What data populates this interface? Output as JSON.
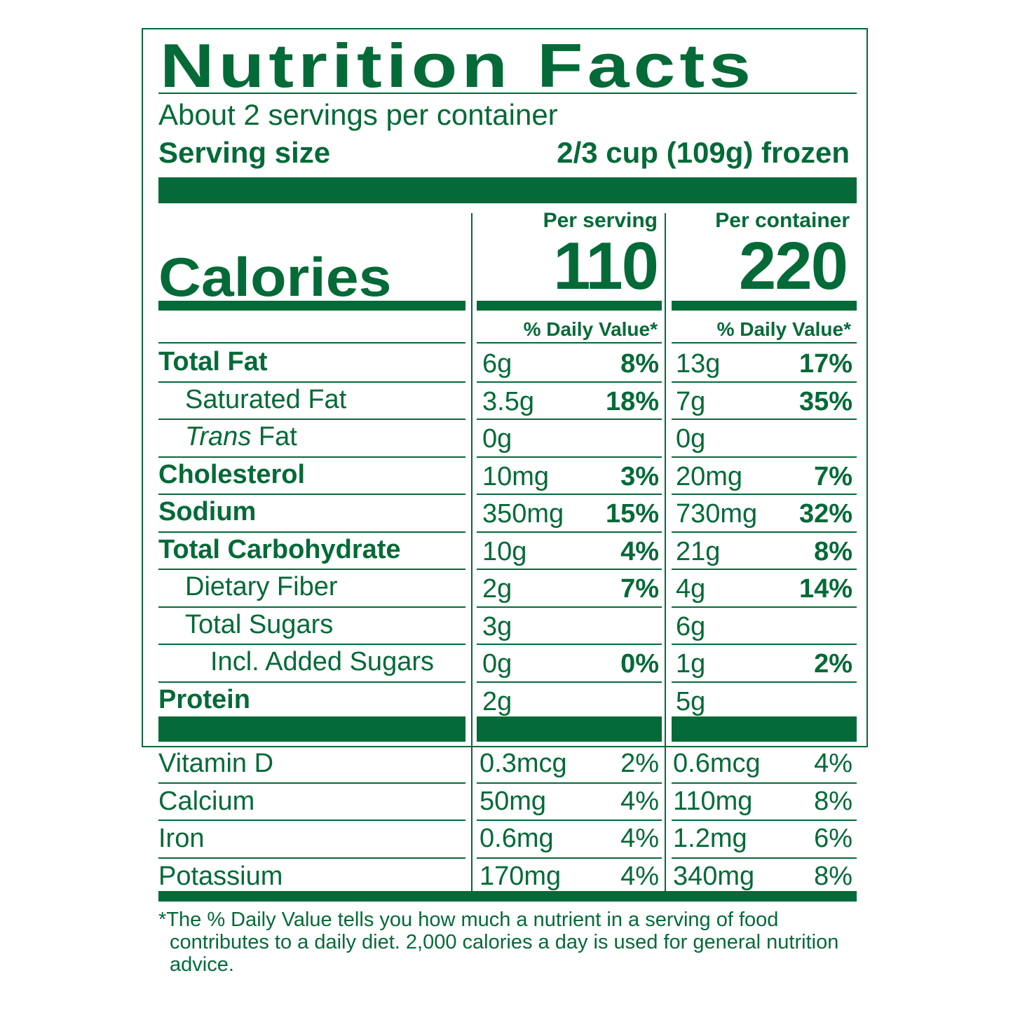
{
  "label": {
    "title": "Nutrition Facts",
    "servings_per_container": "About 2 servings per container",
    "serving_size_label": "Serving size",
    "serving_size_value": "2/3 cup (109g) frozen",
    "calories_label": "Calories",
    "per_serving_header": "Per serving",
    "per_container_header": "Per container",
    "calories_per_serving": "110",
    "calories_per_container": "220",
    "dv_header": "% Daily Value*",
    "nutrients": [
      {
        "name": "Total Fat",
        "serving_amount": "6g",
        "serving_dv": "8%",
        "container_amount": "13g",
        "container_dv": "17%"
      },
      {
        "name": "Saturated Fat",
        "serving_amount": "3.5g",
        "serving_dv": "18%",
        "container_amount": "7g",
        "container_dv": "35%"
      },
      {
        "name_italic": "Trans",
        "name_rest": " Fat",
        "serving_amount": "0g",
        "serving_dv": "",
        "container_amount": "0g",
        "container_dv": ""
      },
      {
        "name": "Cholesterol",
        "serving_amount": "10mg",
        "serving_dv": "3%",
        "container_amount": "20mg",
        "container_dv": "7%"
      },
      {
        "name": "Sodium",
        "serving_amount": "350mg",
        "serving_dv": "15%",
        "container_amount": "730mg",
        "container_dv": "32%"
      },
      {
        "name": "Total Carbohydrate",
        "serving_amount": "10g",
        "serving_dv": "4%",
        "container_amount": "21g",
        "container_dv": "8%"
      },
      {
        "name": "Dietary Fiber",
        "serving_amount": "2g",
        "serving_dv": "7%",
        "container_amount": "4g",
        "container_dv": "14%"
      },
      {
        "name": "Total Sugars",
        "serving_amount": "3g",
        "serving_dv": "",
        "container_amount": "6g",
        "container_dv": ""
      },
      {
        "name": "Incl. Added Sugars",
        "serving_amount": "0g",
        "serving_dv": "0%",
        "container_amount": "1g",
        "container_dv": "2%"
      },
      {
        "name": "Protein",
        "serving_amount": "2g",
        "serving_dv": "",
        "container_amount": "5g",
        "container_dv": ""
      }
    ],
    "vitamins": [
      {
        "name": "Vitamin D",
        "serving_amount": "0.3mcg",
        "serving_dv": "2%",
        "container_amount": "0.6mcg",
        "container_dv": "4%"
      },
      {
        "name": "Calcium",
        "serving_amount": "50mg",
        "serving_dv": "4%",
        "container_amount": "110mg",
        "container_dv": "8%"
      },
      {
        "name": "Iron",
        "serving_amount": "0.6mg",
        "serving_dv": "4%",
        "container_amount": "1.2mg",
        "container_dv": "6%"
      },
      {
        "name": "Potassium",
        "serving_amount": "170mg",
        "serving_dv": "4%",
        "container_amount": "340mg",
        "container_dv": "8%"
      }
    ],
    "footnote": "*The % Daily Value tells you how much a nutrient in a serving of food contributes to a daily diet. 2,000 calories a day is used for general nutrition advice.",
    "ink_color": "#046a38"
  }
}
